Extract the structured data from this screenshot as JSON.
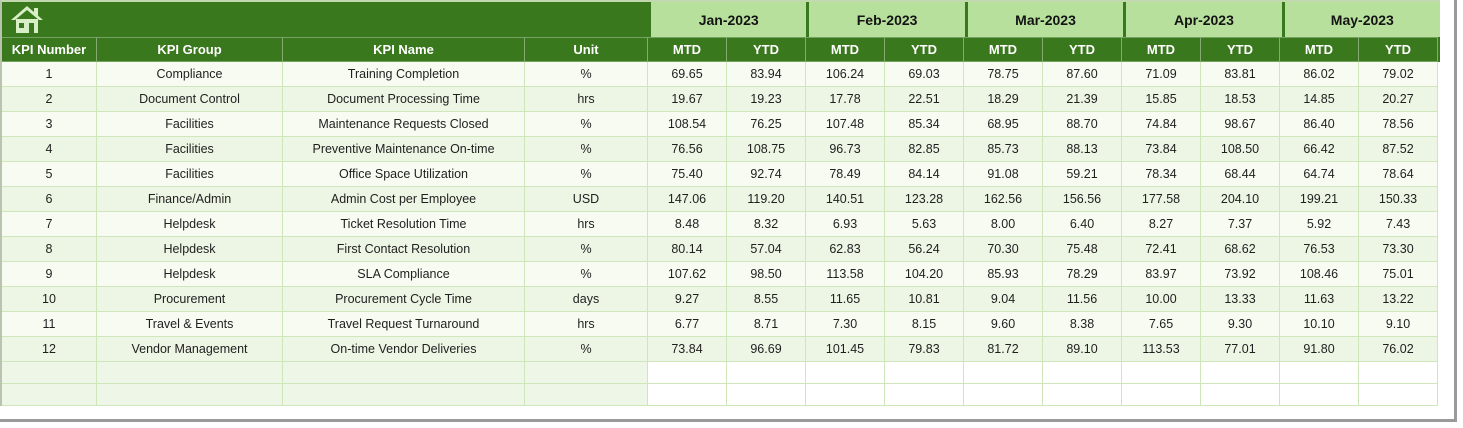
{
  "colors": {
    "dark_green": "#3a781d",
    "month_green": "#b8e09d",
    "row_light": "#f7fbf2",
    "row_alt": "#edf6e5",
    "gridline": "#cfe6bb",
    "header_text": "#ffffff",
    "icon_pale": "#d8eec6"
  },
  "banner": {
    "home_icon": "home"
  },
  "months": [
    "Jan-2023",
    "Feb-2023",
    "Mar-2023",
    "Apr-2023",
    "May-2023"
  ],
  "subheaders": [
    "MTD",
    "YTD"
  ],
  "columns": [
    "KPI Number",
    "KPI Group",
    "KPI Name",
    "Unit"
  ],
  "table": {
    "empty_rows": 2,
    "rows": [
      {
        "number": "1",
        "group": "Compliance",
        "name": "Training Completion",
        "unit": "%",
        "values": [
          "69.65",
          "83.94",
          "106.24",
          "69.03",
          "78.75",
          "87.60",
          "71.09",
          "83.81",
          "86.02",
          "79.02"
        ]
      },
      {
        "number": "2",
        "group": "Document Control",
        "name": "Document Processing Time",
        "unit": "hrs",
        "values": [
          "19.67",
          "19.23",
          "17.78",
          "22.51",
          "18.29",
          "21.39",
          "15.85",
          "18.53",
          "14.85",
          "20.27"
        ]
      },
      {
        "number": "3",
        "group": "Facilities",
        "name": "Maintenance Requests Closed",
        "unit": "%",
        "values": [
          "108.54",
          "76.25",
          "107.48",
          "85.34",
          "68.95",
          "88.70",
          "74.84",
          "98.67",
          "86.40",
          "78.56"
        ]
      },
      {
        "number": "4",
        "group": "Facilities",
        "name": "Preventive Maintenance On-time",
        "unit": "%",
        "values": [
          "76.56",
          "108.75",
          "96.73",
          "82.85",
          "85.73",
          "88.13",
          "73.84",
          "108.50",
          "66.42",
          "87.52"
        ]
      },
      {
        "number": "5",
        "group": "Facilities",
        "name": "Office Space Utilization",
        "unit": "%",
        "values": [
          "75.40",
          "92.74",
          "78.49",
          "84.14",
          "91.08",
          "59.21",
          "78.34",
          "68.44",
          "64.74",
          "78.64"
        ]
      },
      {
        "number": "6",
        "group": "Finance/Admin",
        "name": "Admin Cost per Employee",
        "unit": "USD",
        "values": [
          "147.06",
          "119.20",
          "140.51",
          "123.28",
          "162.56",
          "156.56",
          "177.58",
          "204.10",
          "199.21",
          "150.33"
        ]
      },
      {
        "number": "7",
        "group": "Helpdesk",
        "name": "Ticket Resolution Time",
        "unit": "hrs",
        "values": [
          "8.48",
          "8.32",
          "6.93",
          "5.63",
          "8.00",
          "6.40",
          "8.27",
          "7.37",
          "5.92",
          "7.43"
        ]
      },
      {
        "number": "8",
        "group": "Helpdesk",
        "name": "First Contact Resolution",
        "unit": "%",
        "values": [
          "80.14",
          "57.04",
          "62.83",
          "56.24",
          "70.30",
          "75.48",
          "72.41",
          "68.62",
          "76.53",
          "73.30"
        ]
      },
      {
        "number": "9",
        "group": "Helpdesk",
        "name": "SLA Compliance",
        "unit": "%",
        "values": [
          "107.62",
          "98.50",
          "113.58",
          "104.20",
          "85.93",
          "78.29",
          "83.97",
          "73.92",
          "108.46",
          "75.01"
        ]
      },
      {
        "number": "10",
        "group": "Procurement",
        "name": "Procurement Cycle Time",
        "unit": "days",
        "values": [
          "9.27",
          "8.55",
          "11.65",
          "10.81",
          "9.04",
          "11.56",
          "10.00",
          "13.33",
          "11.63",
          "13.22"
        ]
      },
      {
        "number": "11",
        "group": "Travel & Events",
        "name": "Travel Request Turnaround",
        "unit": "hrs",
        "values": [
          "6.77",
          "8.71",
          "7.30",
          "8.15",
          "9.60",
          "8.38",
          "7.65",
          "9.30",
          "10.10",
          "9.10"
        ]
      },
      {
        "number": "12",
        "group": "Vendor Management",
        "name": "On-time Vendor Deliveries",
        "unit": "%",
        "values": [
          "73.84",
          "96.69",
          "101.45",
          "79.83",
          "81.72",
          "89.10",
          "113.53",
          "77.01",
          "91.80",
          "76.02"
        ]
      }
    ]
  }
}
